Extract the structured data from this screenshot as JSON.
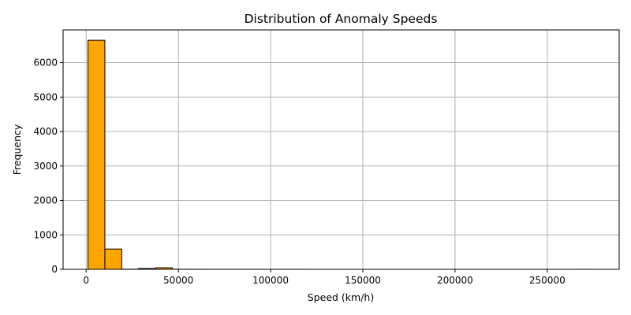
{
  "chart_data": {
    "type": "bar",
    "title": "Distribution of Anomaly Speeds",
    "xlabel": "Speed (km/h)",
    "ylabel": "Frequency",
    "xlim": [
      -12500,
      289000
    ],
    "ylim": [
      0,
      6950
    ],
    "grid": true,
    "bar_color": "#ffa500",
    "edge_color": "#000000",
    "bin_width": 9150,
    "bins": [
      {
        "x0": 1000,
        "count": 6650
      },
      {
        "x0": 10150,
        "count": 590
      },
      {
        "x0": 19300,
        "count": 5
      },
      {
        "x0": 28450,
        "count": 25
      },
      {
        "x0": 37600,
        "count": 45
      },
      {
        "x0": 46750,
        "count": 3
      },
      {
        "x0": 55900,
        "count": 2
      },
      {
        "x0": 65050,
        "count": 1
      },
      {
        "x0": 74200,
        "count": 1
      },
      {
        "x0": 83350,
        "count": 1
      },
      {
        "x0": 92500,
        "count": 1
      },
      {
        "x0": 101650,
        "count": 1
      },
      {
        "x0": 110800,
        "count": 1
      },
      {
        "x0": 119950,
        "count": 0
      },
      {
        "x0": 129100,
        "count": 0
      },
      {
        "x0": 138250,
        "count": 0
      },
      {
        "x0": 147400,
        "count": 0
      },
      {
        "x0": 156550,
        "count": 0
      },
      {
        "x0": 165700,
        "count": 0
      },
      {
        "x0": 174850,
        "count": 0
      },
      {
        "x0": 184000,
        "count": 0
      },
      {
        "x0": 193150,
        "count": 0
      },
      {
        "x0": 202300,
        "count": 0
      },
      {
        "x0": 211450,
        "count": 0
      },
      {
        "x0": 220600,
        "count": 0
      },
      {
        "x0": 229750,
        "count": 0
      },
      {
        "x0": 238900,
        "count": 0
      },
      {
        "x0": 248050,
        "count": 0
      },
      {
        "x0": 257200,
        "count": 0
      },
      {
        "x0": 266350,
        "count": 1
      }
    ],
    "x_ticks": [
      {
        "value": 0,
        "label": "0"
      },
      {
        "value": 50000,
        "label": "50000"
      },
      {
        "value": 100000,
        "label": "100000"
      },
      {
        "value": 150000,
        "label": "150000"
      },
      {
        "value": 200000,
        "label": "200000"
      },
      {
        "value": 250000,
        "label": "250000"
      }
    ],
    "y_ticks": [
      {
        "value": 0,
        "label": "0"
      },
      {
        "value": 1000,
        "label": "1000"
      },
      {
        "value": 2000,
        "label": "2000"
      },
      {
        "value": 3000,
        "label": "3000"
      },
      {
        "value": 4000,
        "label": "4000"
      },
      {
        "value": 5000,
        "label": "5000"
      },
      {
        "value": 6000,
        "label": "6000"
      }
    ]
  }
}
